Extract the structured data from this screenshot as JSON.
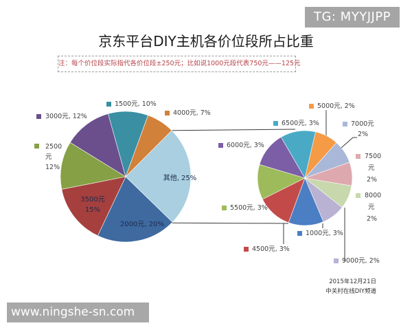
{
  "watermark_top": "TG: MYYJJPP",
  "watermark_bottom": "www.ningshe-sn.com",
  "title": "京东平台DIY主机各价位段所占比重",
  "note": "注：每个价位段实际指代各价位段±250元；比如说1000元段代表750元——125元",
  "source": {
    "date": "2015年12月21日",
    "publisher": "中关村在线DIY频道"
  },
  "chart_data": [
    {
      "type": "pie",
      "title": "京东平台DIY主机各价位段所占比重",
      "name": "main-pie",
      "categories": [
        "其他",
        "2000元",
        "3500元",
        "2500元",
        "3000元",
        "1500元",
        "4000元"
      ],
      "values": [
        25,
        20,
        15,
        12,
        12,
        10,
        7
      ],
      "labels": [
        "其他, 25%",
        "2000元, 20%",
        "3500元\n15%",
        "2500\n元\n12%",
        "3000元, 12%",
        "1500元, 10%",
        "4000元, 7%"
      ],
      "colors": [
        "#a9cfe0",
        "#3e6aa0",
        "#a5403e",
        "#86a045",
        "#6a4f8c",
        "#3a8fa3",
        "#d2813a"
      ],
      "unit": "%"
    },
    {
      "type": "pie",
      "name": "breakdown-pie-其他",
      "parent_slice": "其他",
      "categories": [
        "5000元",
        "7000元",
        "7500元",
        "8000元",
        "9000元",
        "1000元",
        "4500元",
        "5500元",
        "6000元",
        "6500元"
      ],
      "values": [
        2,
        2,
        2,
        2,
        2,
        3,
        3,
        3,
        3,
        3
      ],
      "labels": [
        "5000元, 2%",
        "7000元\n2%",
        "7500\n元\n2%",
        "8000\n元\n2%",
        "9000元, 2%",
        "1000元, 3%",
        "4500元, 3%",
        "5500元, 3%",
        "6000元, 3%",
        "6500元, 3%"
      ],
      "colors": [
        "#f59a45",
        "#a9b8d8",
        "#dea9ae",
        "#c7d8ad",
        "#b9b2d2",
        "#4b7ec3",
        "#c24b49",
        "#9dbb5a",
        "#7b5ea6",
        "#4aaac6"
      ],
      "unit": "%"
    }
  ]
}
